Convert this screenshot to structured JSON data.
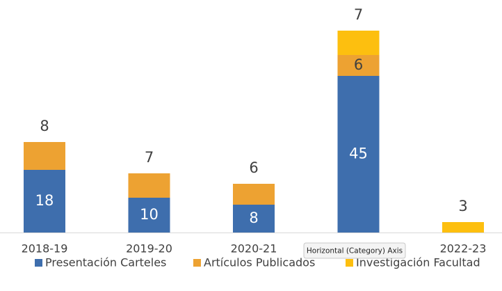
{
  "chart_data": {
    "type": "stacked_bar",
    "categories": [
      "2018-19",
      "2019-20",
      "2020-21",
      null,
      "2022-23"
    ],
    "series": [
      {
        "name": "Presentación Carteles",
        "color": "#3e6ead",
        "values": [
          18,
          10,
          8,
          45,
          null
        ]
      },
      {
        "name": "Artículos Publicados",
        "color": "#eda232",
        "values": [
          8,
          7,
          6,
          6,
          null
        ]
      },
      {
        "name": "Investigación Facultad",
        "color": "#fdbf0f",
        "values": [
          null,
          null,
          null,
          7,
          3
        ]
      }
    ],
    "legend": "bottom",
    "tooltip": "Horizontal (Category) Axis"
  }
}
